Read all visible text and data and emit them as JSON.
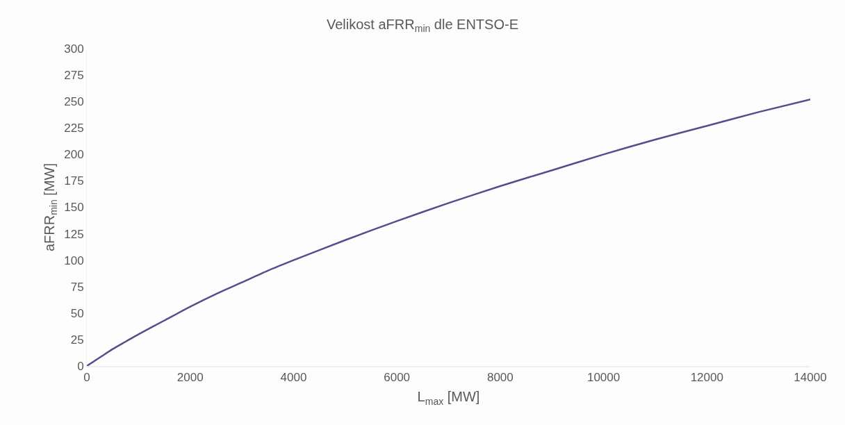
{
  "chart_data": {
    "type": "line",
    "title": "Velikost aFRR$_{min}$ dle ENTSO-E",
    "xlabel": "L$_{max}$ [MW]",
    "ylabel": "aFRR$_{min}$ [MW]",
    "x": [
      0,
      250,
      500,
      750,
      1000,
      1500,
      2000,
      2500,
      3000,
      3500,
      4000,
      5000,
      6000,
      7000,
      8000,
      9000,
      10000,
      11000,
      12000,
      13000,
      14000
    ],
    "series": [
      {
        "color": "#5b4a8c",
        "values": [
          0,
          8,
          16,
          23,
          30,
          43,
          56,
          68,
          79,
          90,
          100,
          119,
          137,
          154,
          170,
          185,
          200,
          214,
          227,
          240,
          252
        ]
      }
    ],
    "xlim": [
      0,
      14000
    ],
    "xticks": [
      0,
      2000,
      4000,
      6000,
      8000,
      10000,
      12000,
      14000
    ],
    "ylim": [
      0,
      300
    ],
    "yticks": [
      0,
      25,
      50,
      75,
      100,
      125,
      150,
      175,
      200,
      225,
      250,
      275,
      300
    ],
    "grid": false,
    "marker": "none",
    "line_style": "solid"
  }
}
